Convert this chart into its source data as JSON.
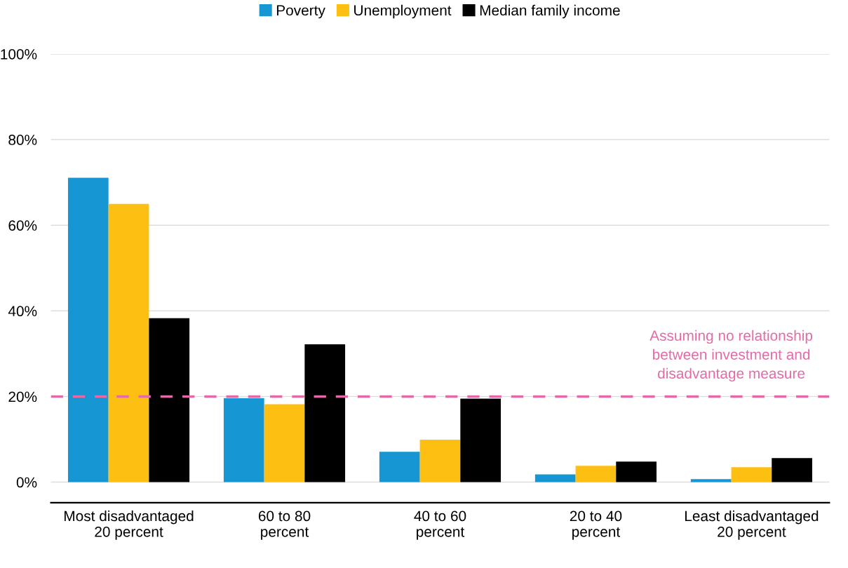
{
  "chart_data": {
    "type": "bar",
    "categories": [
      "Most disadvantaged\n20 percent",
      "60 to 80\npercent",
      "40 to 60\npercent",
      "20 to 40\npercent",
      "Least disadvantaged\n20 percent"
    ],
    "series": [
      {
        "name": "Poverty",
        "color": "#1696d2",
        "values": [
          71.1,
          19.6,
          7.1,
          1.8,
          0.7
        ]
      },
      {
        "name": "Unemployment",
        "color": "#fdbf11",
        "values": [
          65.0,
          18.2,
          9.9,
          3.8,
          3.5
        ]
      },
      {
        "name": "Median family income",
        "color": "#000000",
        "values": [
          38.3,
          32.2,
          19.5,
          4.8,
          5.6
        ]
      }
    ],
    "ylim": [
      -4.8,
      100
    ],
    "yticks": [
      {
        "value": 0,
        "label": "0%"
      },
      {
        "value": 20,
        "label": "20%"
      },
      {
        "value": 40,
        "label": "40%"
      },
      {
        "value": 60,
        "label": "60%"
      },
      {
        "value": 80,
        "label": "80%"
      },
      {
        "value": 100,
        "label": "100%"
      }
    ],
    "grid": "y",
    "legend": "top",
    "ref_lines": [
      {
        "axis": "y",
        "value": 20,
        "label": "Assuming no relationship\nbetween investment and\ndisadvantage measure",
        "color": "#e46aa7",
        "line_style": "dashed"
      }
    ]
  }
}
